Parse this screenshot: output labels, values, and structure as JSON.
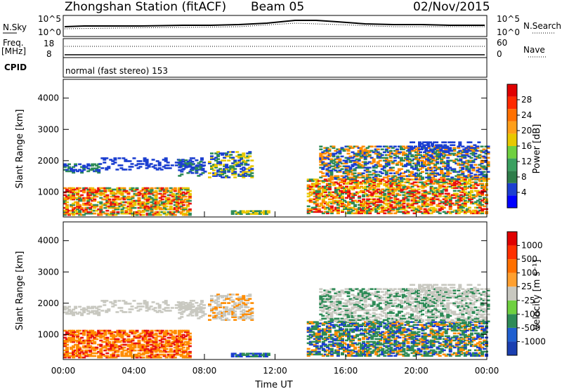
{
  "header": {
    "station": "Zhongshan Station (fitACF)",
    "beam": "Beam 05",
    "date": "02/Nov/2015"
  },
  "top_panel": {
    "left_label": "N.Sky",
    "left_top_tick": "10^5",
    "left_bot_tick": "10^0",
    "right_top_tick": "10^5",
    "right_bot_tick": "10^0",
    "right_label": "N.Search",
    "freq_label_1": "Freq.",
    "freq_label_2": "[MHz]",
    "freq_top_tick": "18",
    "freq_bot_tick": "8",
    "nave_top_tick": "60",
    "nave_bot_tick": "0",
    "nave_label": "Nave",
    "cpid_label": "CPID",
    "cpid_text": "normal (fast stereo) 153"
  },
  "colors": {
    "blue": "#1c3fd0",
    "green": "#2e8b57",
    "orange": "#ff8c00",
    "red": "#e81010",
    "gray": "#c8c8c0",
    "yellow": "#e8c800"
  },
  "chart_data": [
    {
      "type": "heatmap",
      "ylabel": "Slant Range [km]",
      "xlabel": "Time UT",
      "x_ticks": [
        "00:00",
        "04:00",
        "08:00",
        "12:00",
        "16:00",
        "20:00",
        "00:00"
      ],
      "y_ticks": [
        1000,
        2000,
        3000,
        4000
      ],
      "ylim": [
        200,
        4600
      ],
      "colorbar_label": "Power [dB]",
      "colorbar_ticks": [
        4,
        8,
        12,
        16,
        20,
        24,
        28
      ],
      "colorbar_colors": [
        "#0000ff",
        "#1c3fd0",
        "#2e7d4a",
        "#3aa060",
        "#6fd040",
        "#e8c800",
        "#ff9f1a",
        "#ff7000",
        "#ff2a00",
        "#e00000"
      ]
    },
    {
      "type": "heatmap",
      "ylabel": "Slant Range [km]",
      "xlabel": "Time UT",
      "x_ticks": [
        "00:00",
        "04:00",
        "08:00",
        "12:00",
        "16:00",
        "20:00",
        "00:00"
      ],
      "y_ticks": [
        1000,
        2000,
        3000,
        4000
      ],
      "ylim": [
        200,
        4600
      ],
      "colorbar_label": "Velocity [m s⁻¹]",
      "colorbar_ticks": [
        "1000",
        "500",
        "100",
        "25",
        "-25",
        "-100",
        "-500",
        "-1000"
      ],
      "colorbar_colors": [
        "#1a3fb0",
        "#2060d0",
        "#2e8b57",
        "#6fd040",
        "#c8c8c0",
        "#ffa030",
        "#ff7000",
        "#ff3000",
        "#e00000"
      ]
    }
  ]
}
